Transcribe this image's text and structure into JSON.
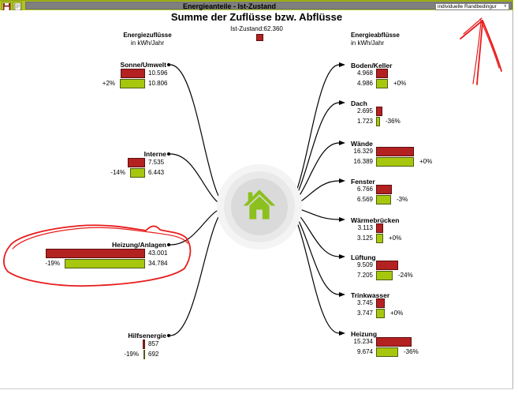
{
  "titlebar": {
    "title": "Energieanteile - Ist-Zustand",
    "dropdown": {
      "value": "individuelle Randbedingur",
      "chevron": "∨"
    }
  },
  "header": {
    "title": "Summe der Zuflüsse bzw. Abflüsse",
    "legend": {
      "label": "Ist-Zustand:62.360"
    }
  },
  "inflow_header": {
    "title": "Energiezuflüsse",
    "unit": "in kWh/Jahr"
  },
  "outflow_header": {
    "title": "Energieabflüsse",
    "unit": "in kWh/Jahr"
  },
  "chart_data": {
    "type": "flow-bar-diagram",
    "unit": "kWh/Jahr",
    "total_label": "Ist-Zustand:62.360",
    "total_value": 62360,
    "series_colors": {
      "ist": "#b32121",
      "ist_border": "#5d0e0e",
      "variant": "#a6c70d",
      "variant_border": "#4c5f10"
    },
    "inflows": [
      {
        "label": "Sonne/Umwelt",
        "ist_label": "10.596",
        "ist": 10596,
        "variant_label": "10.806",
        "variant": 10806,
        "pct": "+2%"
      },
      {
        "label": "Interne",
        "ist_label": "7.535",
        "ist": 7535,
        "variant_label": "6.443",
        "variant": 6443,
        "pct": "-14%"
      },
      {
        "label": "Heizung/Anlagen",
        "ist_label": "43.001",
        "ist": 43001,
        "variant_label": "34.784",
        "variant": 34784,
        "pct": "-19%"
      },
      {
        "label": "Hilfsenergie",
        "ist_label": "857",
        "ist": 857,
        "variant_label": "692",
        "variant": 692,
        "pct": "-19%"
      }
    ],
    "outflows": [
      {
        "label": "Boden/Keller",
        "ist_label": "4.968",
        "ist": 4968,
        "variant_label": "4.986",
        "variant": 4986,
        "pct": "+0%"
      },
      {
        "label": "Dach",
        "ist_label": "2.695",
        "ist": 2695,
        "variant_label": "1.723",
        "variant": 1723,
        "pct": "-36%"
      },
      {
        "label": "Wände",
        "ist_label": "16.329",
        "ist": 16329,
        "variant_label": "16.389",
        "variant": 16389,
        "pct": "+0%"
      },
      {
        "label": "Fenster",
        "ist_label": "6.766",
        "ist": 6766,
        "variant_label": "6.569",
        "variant": 6569,
        "pct": "-3%"
      },
      {
        "label": "Wärmebrücken",
        "ist_label": "3.113",
        "ist": 3113,
        "variant_label": "3.125",
        "variant": 3125,
        "pct": "+0%"
      },
      {
        "label": "Lüftung",
        "ist_label": "9.509",
        "ist": 9509,
        "variant_label": "7.205",
        "variant": 7205,
        "pct": "-24%"
      },
      {
        "label": "Trinkwasser",
        "ist_label": "3.745",
        "ist": 3745,
        "variant_label": "3.747",
        "variant": 3747,
        "pct": "+0%"
      },
      {
        "label": "Heizung",
        "ist_label": "15.234",
        "ist": 15234,
        "variant_label": "9.674",
        "variant": 9674,
        "pct": "-36%"
      }
    ]
  },
  "annotations": {
    "color": "#e81c1c",
    "items": [
      "hand-drawn-ellipse-around-heizung-anlagen",
      "hand-drawn-arrow-pointing-to-dropdown"
    ]
  }
}
